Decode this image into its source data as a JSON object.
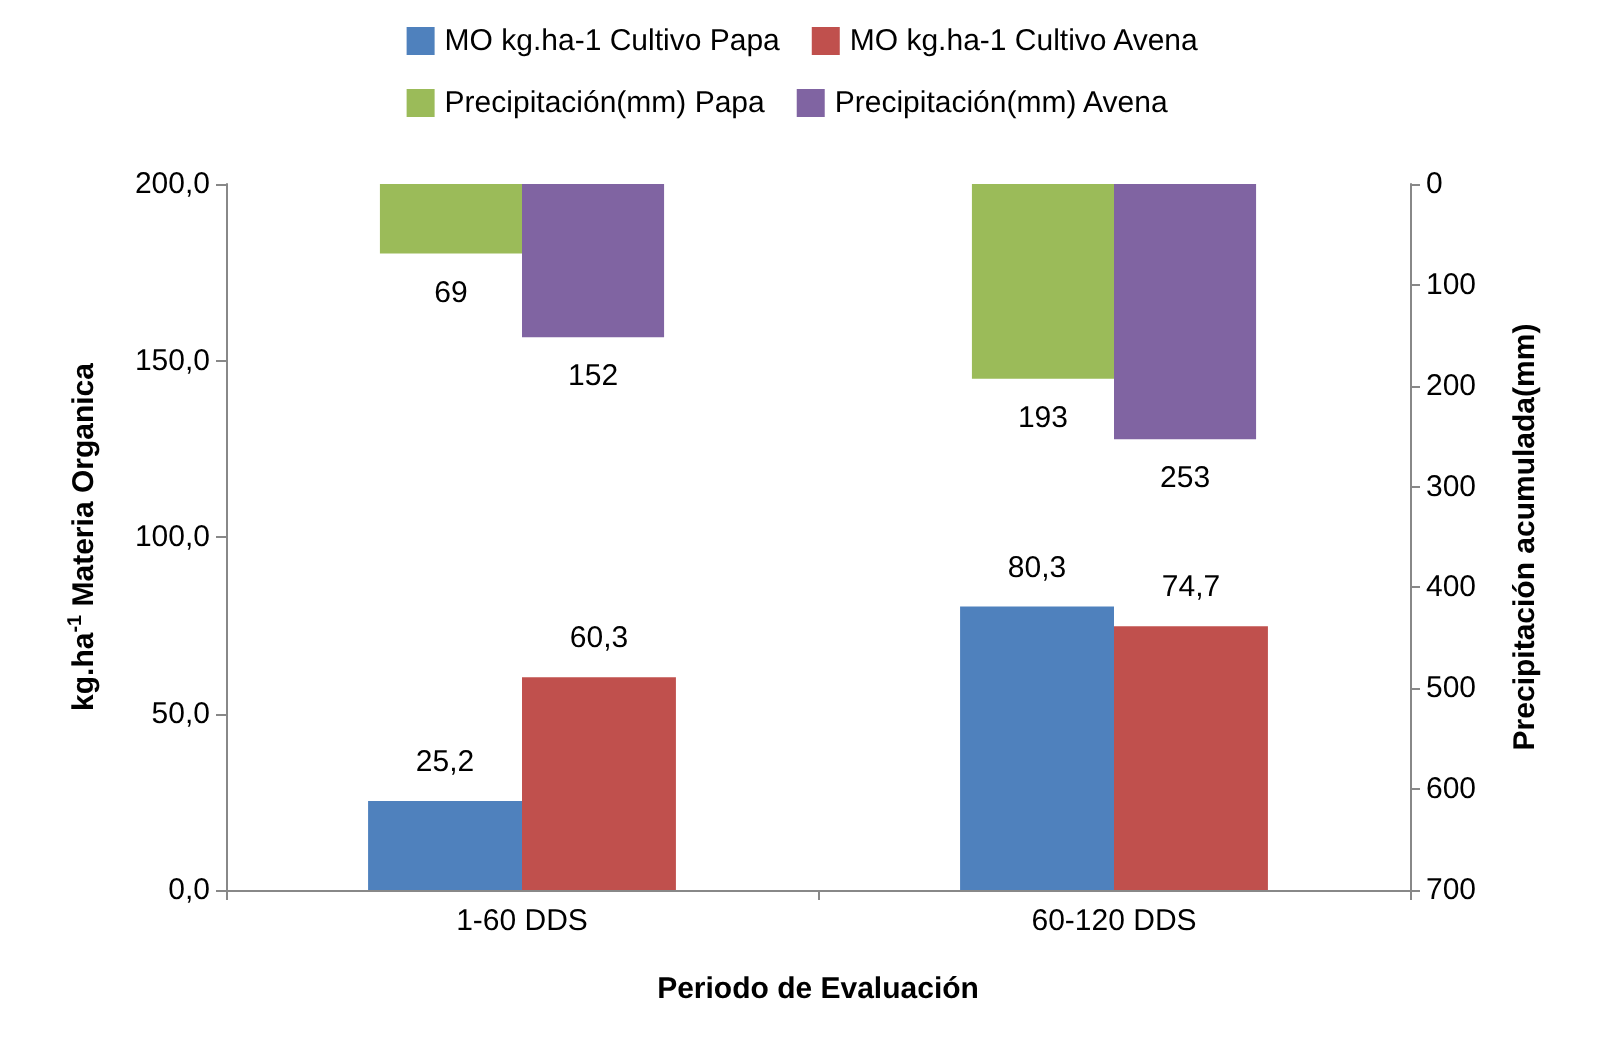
{
  "chart_data": {
    "type": "bar",
    "xlabel": "Periodo de Evaluación",
    "ylabel": "kg.ha$^{-1}$ Materia Organica",
    "y2label": "Precipitación acumulada(mm)",
    "categories": [
      "1-60 DDS",
      "60-120 DDS"
    ],
    "series": [
      {
        "name": "MO kg.ha-1 Cultivo Papa",
        "color": "#4f81bd",
        "values": [
          25.2,
          80.3
        ],
        "value_labels": [
          "25,2",
          "80,3"
        ]
      },
      {
        "name": "MO kg.ha-1 Cultivo Avena",
        "color": "#c0504d",
        "values": [
          60.3,
          74.7
        ],
        "value_labels": [
          "60,3",
          "74,7"
        ]
      },
      {
        "name": "Precipitación(mm) Papa",
        "color": "#9bbb59",
        "values": [
          69,
          193
        ],
        "axis": "y2",
        "value_labels": [
          "69",
          "193"
        ]
      },
      {
        "name": "Precipitación(mm) Avena",
        "color": "#8064a2",
        "values": [
          152,
          253
        ],
        "axis": "y2",
        "value_labels": [
          "152",
          "253"
        ]
      }
    ],
    "ylim": [
      0,
      200
    ],
    "yticks": [
      {
        "value": 0,
        "label": "0,0"
      },
      {
        "value": 50,
        "label": "50,0"
      },
      {
        "value": 100,
        "label": "100,0"
      },
      {
        "value": 150,
        "label": "150,0"
      },
      {
        "value": 200,
        "label": "200,0"
      }
    ],
    "y2lim": [
      700,
      0
    ],
    "y2ticks": [
      0,
      100,
      200,
      300,
      400,
      500,
      600,
      700
    ],
    "grid": false,
    "legend": "top"
  }
}
